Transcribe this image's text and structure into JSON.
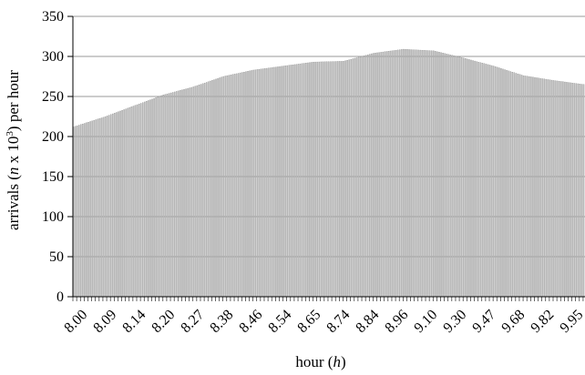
{
  "chart_data": {
    "type": "bar",
    "xlabel": "hour (h)",
    "ylabel": "arrivals (n x 10³) per hour",
    "ylim": [
      0,
      350
    ],
    "yticks": [
      0,
      50,
      100,
      150,
      200,
      250,
      300,
      350
    ],
    "grid": true,
    "bar_color": "#c6c6c6",
    "categories": [
      "8.00",
      "8.09",
      "8.14",
      "8.20",
      "8.27",
      "8.38",
      "8.46",
      "8.54",
      "8.65",
      "8.74",
      "8.84",
      "8.96",
      "9.10",
      "9.30",
      "9.47",
      "9.68",
      "9.82",
      "9.95"
    ],
    "values": [
      212,
      224,
      238,
      252,
      262,
      275,
      283,
      288,
      293,
      294,
      304,
      309,
      307,
      298,
      288,
      276,
      270,
      265
    ]
  }
}
